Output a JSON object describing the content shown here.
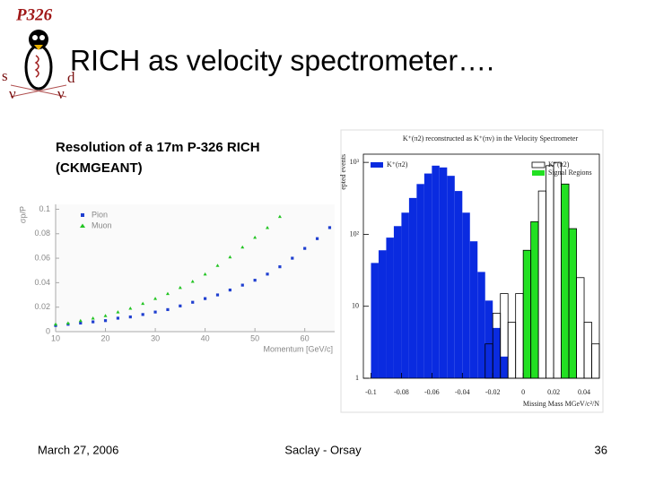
{
  "logo": {
    "name": "P326",
    "symbols": [
      "s",
      "d",
      "ν",
      "ν"
    ]
  },
  "title": "RICH as velocity spectrometer….",
  "caption": [
    "Resolution of a 17m P-326 RICH",
    "(CKMGEANT)"
  ],
  "footer": {
    "date": "March 27, 2006",
    "place": "Saclay - Orsay",
    "page": "36"
  },
  "chart_data": [
    {
      "type": "scatter",
      "x_label": "Momentum [GeV/c]",
      "y_label": "σp/P",
      "xlim": [
        10,
        66
      ],
      "ylim": [
        0,
        0.104
      ],
      "xticks": [
        10,
        20,
        30,
        40,
        50,
        60
      ],
      "yticks": [
        0,
        0.02,
        0.04,
        0.06,
        0.08,
        0.1
      ],
      "legend": "top-left",
      "series": [
        {
          "name": "Pion",
          "color": "#1f3fd0",
          "marker": "square",
          "x": [
            10,
            12.5,
            15,
            17.5,
            20,
            22.5,
            25,
            27.5,
            30,
            32.5,
            35,
            37.5,
            40,
            42.5,
            45,
            47.5,
            50,
            52.5,
            55,
            57.5,
            60,
            62.5,
            65
          ],
          "values": [
            0.005,
            0.006,
            0.007,
            0.008,
            0.009,
            0.011,
            0.012,
            0.014,
            0.016,
            0.018,
            0.021,
            0.024,
            0.027,
            0.03,
            0.034,
            0.038,
            0.042,
            0.047,
            0.053,
            0.06,
            0.068,
            0.076,
            0.085
          ]
        },
        {
          "name": "Muon",
          "color": "#22c422",
          "marker": "triangle",
          "x": [
            10,
            12.5,
            15,
            17.5,
            20,
            22.5,
            25,
            27.5,
            30,
            32.5,
            35,
            37.5,
            40,
            42.5,
            45,
            47.5,
            50,
            52.5,
            55
          ],
          "values": [
            0.006,
            0.007,
            0.009,
            0.011,
            0.013,
            0.016,
            0.019,
            0.023,
            0.027,
            0.031,
            0.036,
            0.041,
            0.047,
            0.054,
            0.061,
            0.069,
            0.077,
            0.085,
            0.094
          ]
        }
      ]
    },
    {
      "type": "histogram",
      "title": "K⁺(π2) reconstructed as K⁺(πν) in the Velocity Spectrometer",
      "x_label": "Missing Mass MGeV/c²/N",
      "y_label": "epted events",
      "log_y": true,
      "xlim": [
        -0.105,
        0.05
      ],
      "ylim": [
        1,
        1300
      ],
      "xticks": [
        -0.1,
        -0.08,
        -0.06,
        -0.04,
        -0.02,
        0,
        0.02,
        0.04
      ],
      "yticks": [
        1,
        10,
        {
          "value": 100,
          "label": "10²"
        },
        {
          "value": 1000,
          "label": "10³"
        }
      ],
      "bins": [
        -0.1,
        -0.095,
        -0.09,
        -0.085,
        -0.08,
        -0.075,
        -0.07,
        -0.065,
        -0.06,
        -0.055,
        -0.05,
        -0.045,
        -0.04,
        -0.035,
        -0.03,
        -0.025,
        -0.02,
        -0.015,
        -0.01,
        -0.005,
        0,
        0.005,
        0.01,
        0.015,
        0.02,
        0.025,
        0.03,
        0.035,
        0.04,
        0.045,
        0.05
      ],
      "series": [
        {
          "name": "K⁺(π2)",
          "color": "#0a2be0",
          "filled": true,
          "values": [
            40,
            60,
            90,
            130,
            200,
            320,
            500,
            700,
            900,
            850,
            650,
            400,
            200,
            80,
            30,
            12,
            5,
            2,
            null,
            null,
            null,
            null,
            null,
            null,
            null,
            null,
            null,
            null,
            null,
            null
          ]
        },
        {
          "name": "Signal Regions",
          "color": "#22e022",
          "filled": true,
          "values": [
            null,
            null,
            null,
            null,
            null,
            null,
            null,
            null,
            null,
            null,
            null,
            null,
            null,
            null,
            null,
            null,
            null,
            null,
            null,
            null,
            60,
            150,
            null,
            null,
            null,
            500,
            120,
            null,
            null,
            null
          ]
        },
        {
          "name": "K⁺(π2)",
          "color": "#000000",
          "filled": false,
          "values": [
            null,
            null,
            null,
            null,
            null,
            null,
            null,
            null,
            null,
            null,
            null,
            null,
            null,
            null,
            null,
            3,
            8,
            15,
            6,
            15,
            60,
            150,
            400,
            900,
            1000,
            500,
            120,
            25,
            6,
            3
          ]
        }
      ]
    }
  ]
}
